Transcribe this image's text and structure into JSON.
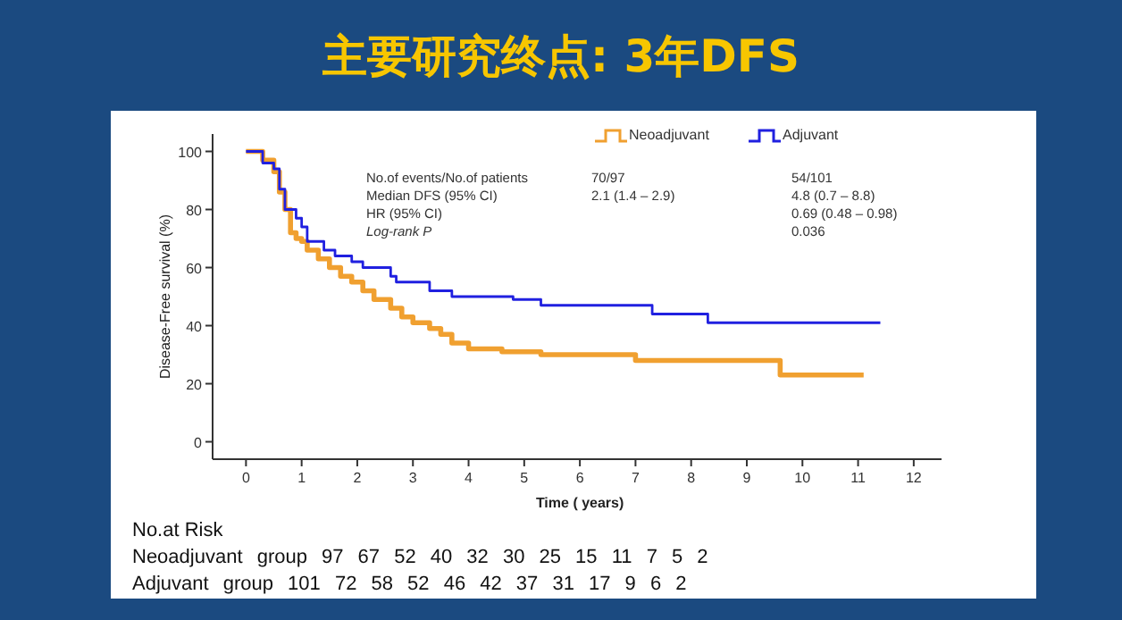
{
  "chart_data": {
    "type": "step",
    "title": "主要研究终点: 3年DFS",
    "xlabel": "Time ( years)",
    "ylabel": "Disease-Free survival (%)",
    "xlim": [
      -0.6,
      12.5
    ],
    "ylim": [
      -6,
      106
    ],
    "xticks": [
      0,
      1,
      2,
      3,
      4,
      5,
      6,
      7,
      8,
      9,
      10,
      11,
      12
    ],
    "yticks": [
      0,
      20,
      40,
      60,
      80,
      100
    ],
    "grid": false,
    "legend": "top right",
    "line_style": "solid",
    "series": [
      {
        "name": "Neoadjuvant",
        "color": "#f0a030",
        "x": [
          0,
          0.2,
          0.3,
          0.5,
          0.6,
          0.7,
          0.8,
          0.9,
          1.0,
          1.1,
          1.3,
          1.5,
          1.7,
          1.9,
          2.1,
          2.3,
          2.6,
          2.8,
          3.0,
          3.3,
          3.5,
          3.7,
          4.0,
          4.6,
          5.3,
          7.0,
          9.6,
          11.1
        ],
        "values": [
          100,
          100,
          97,
          93,
          86,
          80,
          72,
          70,
          69,
          66,
          63,
          60,
          57,
          55,
          52,
          49,
          46,
          43,
          41,
          39,
          37,
          34,
          32,
          31,
          30,
          28,
          23,
          23
        ]
      },
      {
        "name": "Adjuvant",
        "color": "#2020e0",
        "x": [
          0,
          0.3,
          0.5,
          0.6,
          0.7,
          0.9,
          1.0,
          1.1,
          1.4,
          1.6,
          1.9,
          2.1,
          2.6,
          2.7,
          3.3,
          3.7,
          4.8,
          5.3,
          7.3,
          8.3,
          11.4
        ],
        "values": [
          100,
          96,
          94,
          87,
          80,
          77,
          74,
          69,
          66,
          64,
          62,
          60,
          57,
          55,
          52,
          50,
          49,
          47,
          44,
          41,
          41
        ]
      }
    ],
    "annotations": [
      "No.of events/No.of patients",
      "70/97",
      "54/101",
      "Median DFS (95% CI)",
      "2.1 (1.4 – 2.9)",
      "4.8 (0.7 – 8.8)",
      "HR (95% CI)",
      "0.69 (0.48 – 0.98)",
      "Log-rank P",
      "0.036",
      "No.at Risk",
      "Neoadjuvant group 97 67 52 40 32 30 25 15 11 7 5 2",
      "Adjuvant group 101 72 58 52 46 42 37 31 17 9 6 2"
    ]
  }
}
